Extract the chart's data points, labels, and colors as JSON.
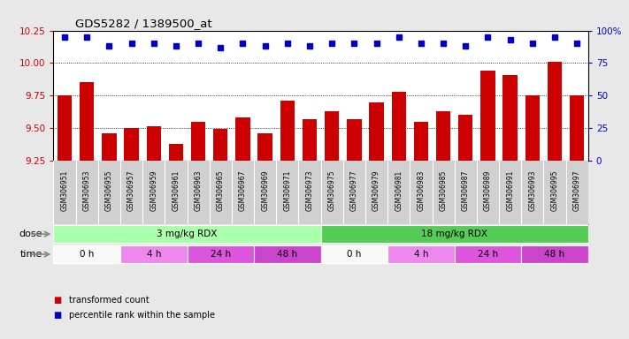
{
  "title": "GDS5282 / 1389500_at",
  "samples": [
    "GSM306951",
    "GSM306953",
    "GSM306955",
    "GSM306957",
    "GSM306959",
    "GSM306961",
    "GSM306963",
    "GSM306965",
    "GSM306967",
    "GSM306969",
    "GSM306971",
    "GSM306973",
    "GSM306975",
    "GSM306977",
    "GSM306979",
    "GSM306981",
    "GSM306983",
    "GSM306985",
    "GSM306987",
    "GSM306989",
    "GSM306991",
    "GSM306993",
    "GSM306995",
    "GSM306997"
  ],
  "bar_values": [
    9.75,
    9.85,
    9.46,
    9.5,
    9.51,
    9.38,
    9.55,
    9.49,
    9.58,
    9.46,
    9.71,
    9.57,
    9.63,
    9.57,
    9.7,
    9.78,
    9.55,
    9.63,
    9.6,
    9.94,
    9.91,
    9.75,
    10.01,
    9.75
  ],
  "percentile_values": [
    95,
    95,
    88,
    90,
    90,
    88,
    90,
    87,
    90,
    88,
    90,
    88,
    90,
    90,
    90,
    95,
    90,
    90,
    88,
    95,
    93,
    90,
    95,
    90
  ],
  "ylim_left": [
    9.25,
    10.25
  ],
  "ylim_right": [
    0,
    100
  ],
  "yticks_left": [
    9.25,
    9.5,
    9.75,
    10.0,
    10.25
  ],
  "yticks_right": [
    0,
    25,
    50,
    75,
    100
  ],
  "ytick_labels_right": [
    "0",
    "25",
    "50",
    "75",
    "100%"
  ],
  "bar_color": "#cc0000",
  "dot_color": "#0000cc",
  "fig_bg": "#e8e8e8",
  "plot_bg": "#ffffff",
  "xtick_bg": "#d0d0d0",
  "dose_colors": [
    "#aaffaa",
    "#55cc55"
  ],
  "dose_labels": [
    "3 mg/kg RDX",
    "18 mg/kg RDX"
  ],
  "dose_starts": [
    0,
    12
  ],
  "dose_ends": [
    12,
    24
  ],
  "time_labels": [
    "0 h",
    "4 h",
    "24 h",
    "48 h",
    "0 h",
    "4 h",
    "24 h",
    "48 h"
  ],
  "time_colors": [
    "#f8f8f8",
    "#ee88ee",
    "#dd55dd",
    "#cc44cc",
    "#f8f8f8",
    "#ee88ee",
    "#dd55dd",
    "#cc44cc"
  ],
  "time_starts": [
    0,
    3,
    6,
    9,
    12,
    15,
    18,
    21
  ],
  "time_ends": [
    3,
    6,
    9,
    12,
    15,
    18,
    21,
    24
  ],
  "legend_items": [
    {
      "label": "transformed count",
      "color": "#cc0000"
    },
    {
      "label": "percentile rank within the sample",
      "color": "#0000cc"
    }
  ]
}
